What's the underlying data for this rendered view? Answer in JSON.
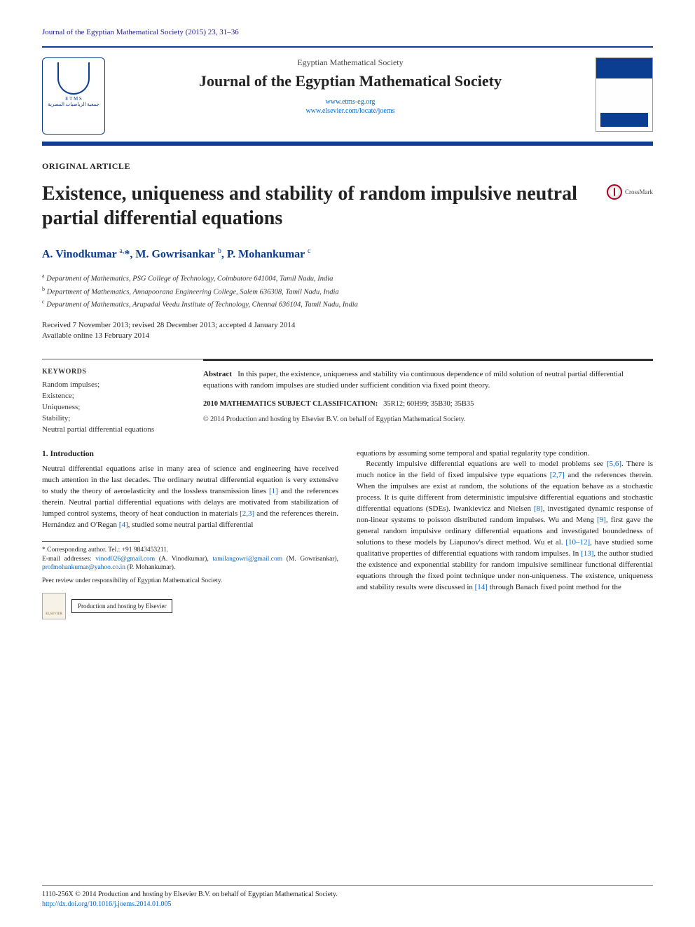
{
  "colors": {
    "accent": "#0b3d91",
    "link": "#0066cc",
    "text": "#222222",
    "rule": "#555555"
  },
  "journal_ref": "Journal of the Egyptian Mathematical Society (2015) 23, 31–36",
  "header": {
    "society": "Egyptian Mathematical Society",
    "journal_name": "Journal of the Egyptian Mathematical Society",
    "url1": "www.etms-eg.org",
    "url2": "www.elsevier.com/locate/joems",
    "logo_letters": "E T M S",
    "logo_sub": "جمعية الرياضيات المصرية"
  },
  "article_type": "ORIGINAL ARTICLE",
  "title": "Existence, uniqueness and stability of random impulsive neutral partial differential equations",
  "crossmark": "CrossMark",
  "authors_html": "A. Vinodkumar <sup>a,</sup><span class='star'>*</span>, M. Gowrisankar <sup>b</sup>, P. Mohankumar <sup>c</sup>",
  "affiliations": {
    "a": "Department of Mathematics, PSG College of Technology, Coimbatore 641004, Tamil Nadu, India",
    "b": "Department of Mathematics, Annapoorana Engineering College, Salem 636308, Tamil Nadu, India",
    "c": "Department of Mathematics, Arupadai Veedu Institute of Technology, Chennai 636104, Tamil Nadu, India"
  },
  "dates": {
    "line1": "Received 7 November 2013; revised 28 December 2013; accepted 4 January 2014",
    "line2": "Available online 13 February 2014"
  },
  "keywords_head": "KEYWORDS",
  "keywords": "Random impulses;\nExistence;\nUniqueness;\nStability;\nNeutral partial differential equations",
  "abstract_label": "Abstract",
  "abstract": "In this paper, the existence, uniqueness and stability via continuous dependence of mild solution of neutral partial differential equations with random impulses are studied under sufficient condition via fixed point theory.",
  "msc_label": "2010 MATHEMATICS SUBJECT CLASSIFICATION:",
  "msc_codes": "35R12; 60H99; 35B30; 35B35",
  "copyright_line": "© 2014 Production and hosting by Elsevier B.V. on behalf of Egyptian Mathematical Society.",
  "section1_head": "1. Introduction",
  "col_left_p1": "Neutral differential equations arise in many area of science and engineering have received much attention in the last decades. The ordinary neutral differential equation is very extensive to study the theory of aeroelasticity and the lossless transmission lines [1] and the references therein. Neutral partial differential equations with delays are motivated from stabilization of lumped control systems, theory of heat conduction in materials [2,3] and the references therein. Hernández and O'Regan [4], studied some neutral partial differential",
  "col_right_p1": "equations by assuming some temporal and spatial regularity type condition.",
  "col_right_p2": "Recently impulsive differential equations are well to model problems see [5,6]. There is much notice in the field of fixed impulsive type equations [2,7] and the references therein. When the impulses are exist at random, the solutions of the equation behave as a stochastic process. It is quite different from deterministic impulsive differential equations and stochastic differential equations (SDEs). Iwankievicz and Nielsen [8], investigated dynamic response of non-linear systems to poisson distributed random impulses. Wu and Meng [9], first gave the general random impulsive ordinary differential equations and investigated boundedness of solutions to these models by Liapunov's direct method. Wu et al. [10–12], have studied some qualitative properties of differential equations with random impulses. In [13], the author studied the existence and exponential stability for random impulsive semilinear functional differential equations through the fixed point technique under non-uniqueness. The existence, uniqueness and stability results were discussed in [14] through Banach fixed point method for the",
  "footnotes": {
    "corr": "* Corresponding author. Tel.: +91 9843453211.",
    "emails_label": "E-mail addresses:",
    "e1": "vinod026@gmail.com",
    "e1_who": "(A. Vinodkumar),",
    "e2": "tamilangowri@gmail.com",
    "e2_who": "(M. Gowrisankar),",
    "e3": "profmohankumar@yahoo.co.in",
    "e3_who": "(P. Mohankumar).",
    "peer": "Peer review under responsibility of Egyptian Mathematical Society.",
    "elsevier": "ELSEVIER",
    "prod_host": "Production and hosting by Elsevier"
  },
  "footer": {
    "line1": "1110-256X © 2014 Production and hosting by Elsevier B.V. on behalf of Egyptian Mathematical Society.",
    "doi": "http://dx.doi.org/10.1016/j.joems.2014.01.005"
  },
  "refs_in_text": [
    "[1]",
    "[2,3]",
    "[4]",
    "[5,6]",
    "[2,7]",
    "[8]",
    "[9]",
    "[10–12]",
    "[13]",
    "[14]"
  ]
}
